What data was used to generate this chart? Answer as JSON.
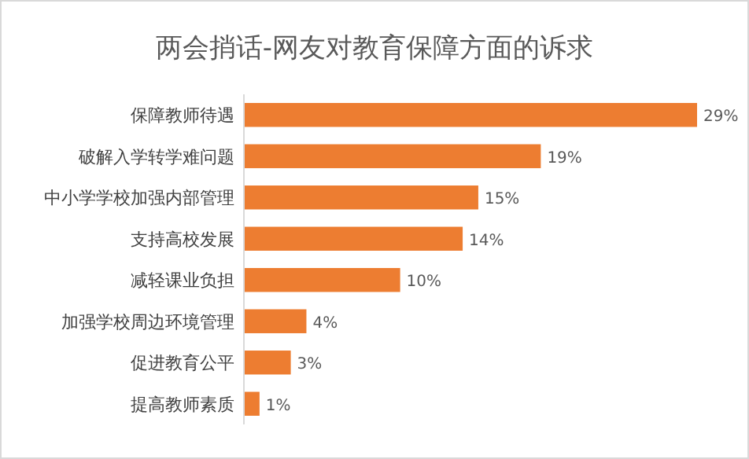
{
  "chart_data": {
    "type": "bar",
    "orientation": "horizontal",
    "title": "两会捎话-网友对教育保障方面的诉求",
    "categories": [
      "保障教师待遇",
      "破解入学转学难问题",
      "中小学学校加强内部管理",
      "支持高校发展",
      "减轻课业负担",
      "加强学校周边环境管理",
      "促进教育公平",
      "提高教师素质"
    ],
    "values": [
      29,
      19,
      15,
      14,
      10,
      4,
      3,
      1
    ],
    "value_labels": [
      "29%",
      "19%",
      "15%",
      "14%",
      "10%",
      "4%",
      "3%",
      "1%"
    ],
    "color": "#ed7d31"
  }
}
